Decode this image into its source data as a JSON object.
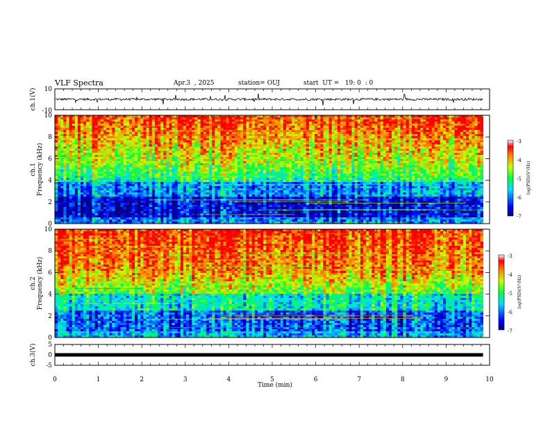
{
  "header": {
    "title": "VLF Spectra",
    "date": "Apr.3  , 2025",
    "station": "station= OUJ",
    "start": "start  UT =   19: 0  : 0"
  },
  "chart_data": [
    {
      "type": "line",
      "ylabel": "ch.1(V)",
      "ylim": [
        -10,
        10
      ],
      "yticks": [
        "10",
        "-10"
      ],
      "xlim": [
        0,
        10
      ]
    },
    {
      "type": "heatmap",
      "ylabel_line1": "ch.1",
      "ylabel_line2": "Frequency (kHz)",
      "ylim": [
        0,
        10
      ],
      "yticks": [
        "0",
        "2",
        "4",
        "6",
        "8",
        "10"
      ],
      "xlim": [
        0,
        9.85
      ],
      "colorbar": {
        "label": "log(PSD)(V²/Hz)",
        "range": [
          -7,
          -3
        ],
        "ticks": [
          "-3",
          "-4",
          "-5",
          "-6",
          "-7"
        ]
      }
    },
    {
      "type": "heatmap",
      "ylabel_line1": "ch.2",
      "ylabel_line2": "Frequency (kHz)",
      "ylim": [
        0,
        10
      ],
      "yticks": [
        "0",
        "2",
        "4",
        "6",
        "8",
        "10"
      ],
      "xlim": [
        0,
        9.85
      ],
      "colorbar": {
        "label": "log(PSD)(V²/Hz)",
        "range": [
          -7,
          -3
        ],
        "ticks": [
          "-3",
          "-4",
          "-5",
          "-6",
          "-7"
        ]
      }
    },
    {
      "type": "line",
      "ylabel": "ch.3(V)",
      "ylim": [
        -5,
        5
      ],
      "yticks": [
        "5",
        "0",
        "-5"
      ],
      "value": 0,
      "xlim": [
        0,
        9.85
      ]
    }
  ],
  "xaxis": {
    "label": "Time (min)",
    "ticks": [
      "0",
      "1",
      "2",
      "3",
      "4",
      "5",
      "6",
      "7",
      "8",
      "9",
      "10"
    ],
    "range": [
      0,
      10
    ]
  }
}
